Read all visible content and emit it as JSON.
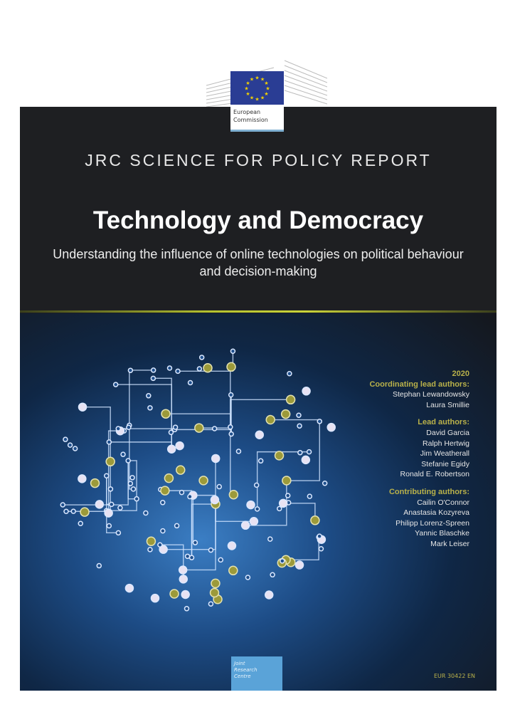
{
  "logo": {
    "line1": "European",
    "line2": "Commission"
  },
  "series": "JRC SCIENCE FOR POLICY REPORT",
  "title": "Technology and Democracy",
  "subtitle": "Understanding the influence of online technologies on political behaviour and decision-making",
  "year": "2020",
  "coordinating": {
    "heading": "Coordinating lead authors:",
    "names": [
      "Stephan Lewandowsky",
      "Laura Smillie"
    ]
  },
  "lead": {
    "heading": "Lead authors:",
    "names": [
      "David Garcia",
      "Ralph Hertwig",
      "Jim Weatherall",
      "Stefanie Egidy",
      "Ronald E. Robertson"
    ]
  },
  "contributing": {
    "heading": "Contributing authors:",
    "names": [
      "Cailin O'Connor",
      "Anastasia Kozyreva",
      "Philipp Lorenz-Spreen",
      "Yannic Blaschke",
      "Mark Leiser"
    ]
  },
  "jrc": {
    "line1": "Joint",
    "line2": "Research",
    "line3": "Centre"
  },
  "report_number": "EUR 30422 EN",
  "colors": {
    "accent": "#b9b14a",
    "flag": "#2a3d94",
    "jrc": "#5aa3d8"
  }
}
